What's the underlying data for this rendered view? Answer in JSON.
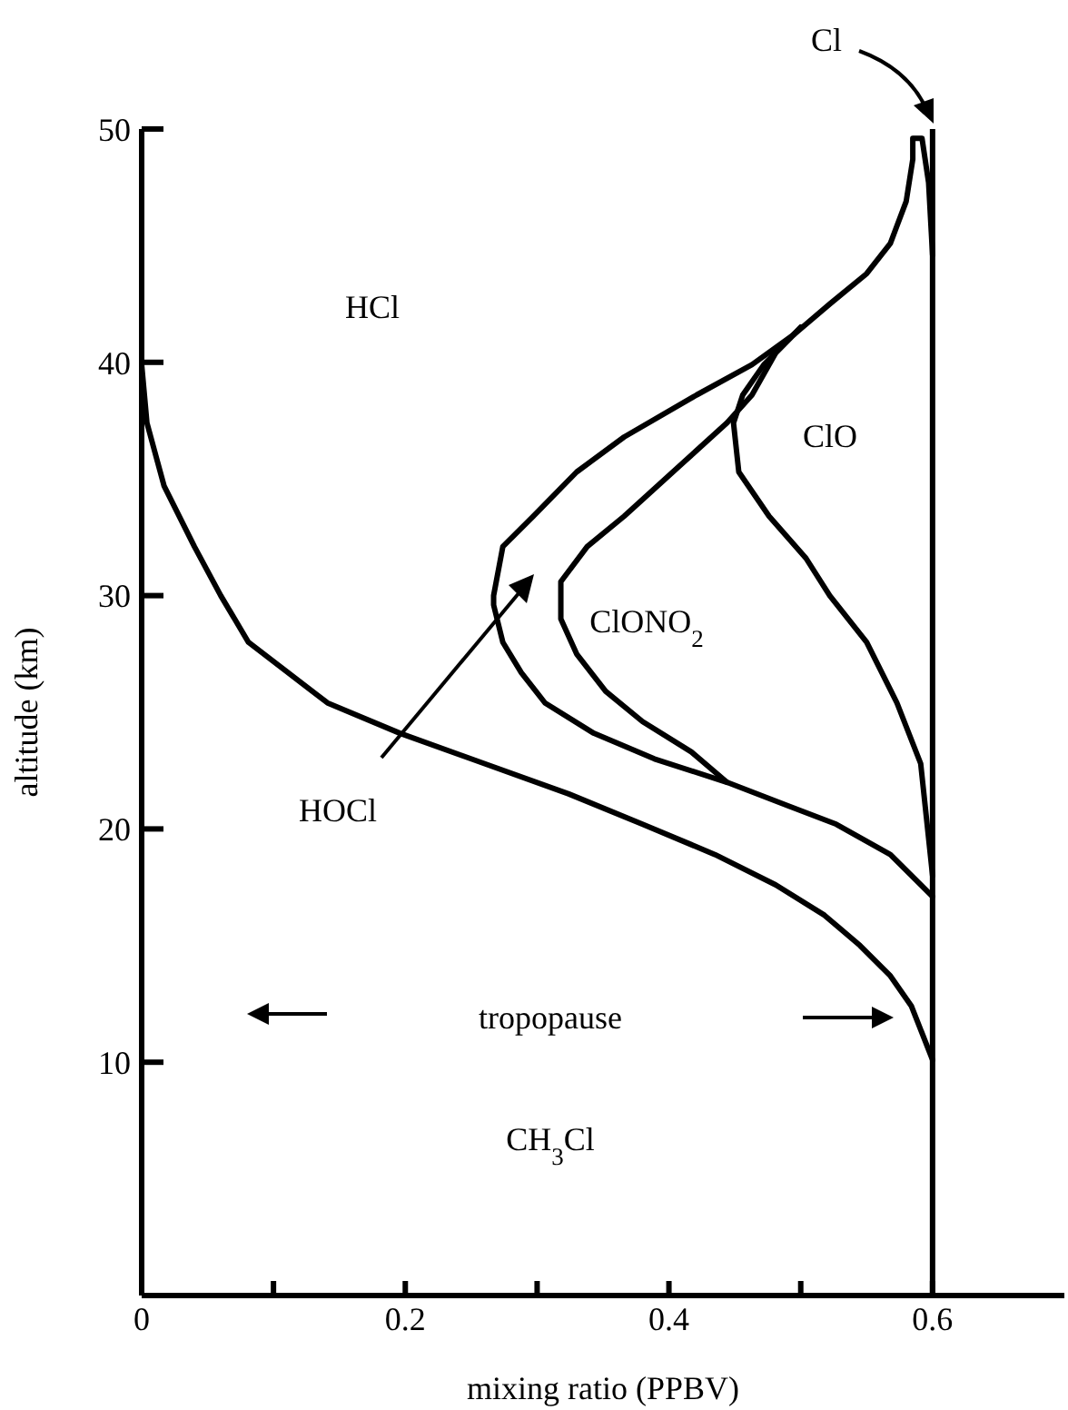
{
  "chart_data": {
    "type": "line",
    "xlabel": "mixing ratio (PPBV)",
    "ylabel": "altitude (km)",
    "xlim": [
      0,
      0.7
    ],
    "xticks": [
      {
        "value": 0,
        "label": "0"
      },
      {
        "value": 0.1,
        "label": null
      },
      0.2,
      {
        "value": 0.3,
        "label": null
      },
      0.4,
      {
        "value": 0.5,
        "label": null
      },
      0.6
    ],
    "ylim": [
      0,
      50
    ],
    "yticks": [
      {
        "value": 0,
        "label": null
      },
      10,
      20,
      30,
      40,
      50
    ],
    "marker": "none",
    "line_style": "solid",
    "series": [
      {
        "color": "#000000",
        "x": [
          0.6,
          0.584,
          0.568,
          0.545,
          0.518,
          0.481,
          0.435,
          0.38,
          0.324,
          0.26,
          0.196,
          0.141,
          0.081,
          0.06,
          0.04,
          0.017,
          0.004,
          0
        ],
        "values": [
          10.1,
          12.4,
          13.7,
          15,
          16.3,
          17.6,
          18.9,
          20.2,
          21.5,
          22.8,
          24.1,
          25.4,
          28,
          30,
          32.1,
          34.7,
          37.4,
          39.9
        ]
      },
      {
        "color": "#000000",
        "x": [
          0.6,
          0.568,
          0.527,
          0.49,
          0.444,
          0.389,
          0.343,
          0.306,
          0.288,
          0.274,
          0.267,
          0.267,
          0.274,
          0.297,
          0.33,
          0.366,
          0.421,
          0.463,
          0.495,
          0.522,
          0.55,
          0.568,
          0.58,
          0.585,
          0.585,
          0.592,
          0.597,
          0.6
        ],
        "values": [
          17.1,
          18.9,
          20.2,
          21,
          22,
          23,
          24.1,
          25.4,
          26.7,
          28,
          29.6,
          30,
          32.1,
          33.4,
          35.3,
          36.8,
          38.6,
          39.9,
          41.2,
          42.5,
          43.8,
          45.1,
          46.9,
          48.7,
          49.6,
          49.6,
          47.7,
          44.6
        ]
      },
      {
        "color": "#000000",
        "x": [
          0.444,
          0.417,
          0.38,
          0.352,
          0.33,
          0.318,
          0.318,
          0.338,
          0.366,
          0.403,
          0.444,
          0.463,
          0.481,
          0.5
        ],
        "values": [
          22,
          23.3,
          24.6,
          25.9,
          27.5,
          29,
          30.6,
          32.1,
          33.4,
          35.3,
          37.4,
          38.6,
          40.4,
          41.5
        ]
      },
      {
        "color": "#000000",
        "x": [
          0.5,
          0.472,
          0.456,
          0.449,
          0.453,
          0.476,
          0.504,
          0.522,
          0.55,
          0.573,
          0.591,
          0.6
        ],
        "values": [
          41.5,
          39.9,
          38.6,
          37.4,
          35.3,
          33.4,
          31.6,
          30,
          28,
          25.4,
          22.8,
          18
        ]
      }
    ],
    "ref_lines": [
      {
        "axis": "x",
        "value": 0.6,
        "color": "#000000",
        "line_style": "solid"
      }
    ],
    "annotations": [
      "Cl",
      "HCl",
      "ClO",
      "ClONO$_{2}$",
      "HOCl",
      "tropopause",
      "CH$_{3}$Cl"
    ]
  }
}
